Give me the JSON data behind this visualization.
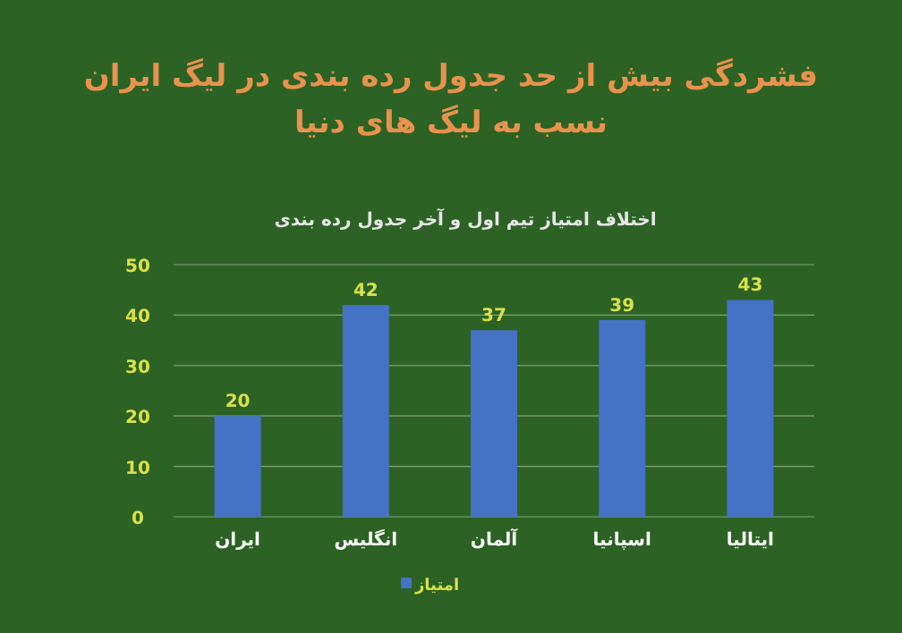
{
  "chart_data": {
    "type": "bar",
    "title": "فشردگی بیش از حد جدول رده بندی در لیگ ایران نسب به لیگ های دنیا",
    "subtitle": "اختلاف امتیاز تیم اول و آخر جدول رده بندی",
    "categories": [
      "ایران",
      "انگلیس",
      "آلمان",
      "اسپانیا",
      "ایتالیا"
    ],
    "series": [
      {
        "name": "امتیاز",
        "color": "#4472c4",
        "values": [
          20,
          42,
          37,
          39,
          43
        ]
      }
    ],
    "ylim": [
      0,
      50
    ],
    "yticks": [
      0,
      10,
      20,
      30,
      40,
      50
    ],
    "grid": "y",
    "legend": "bottom",
    "data_labels": true
  }
}
